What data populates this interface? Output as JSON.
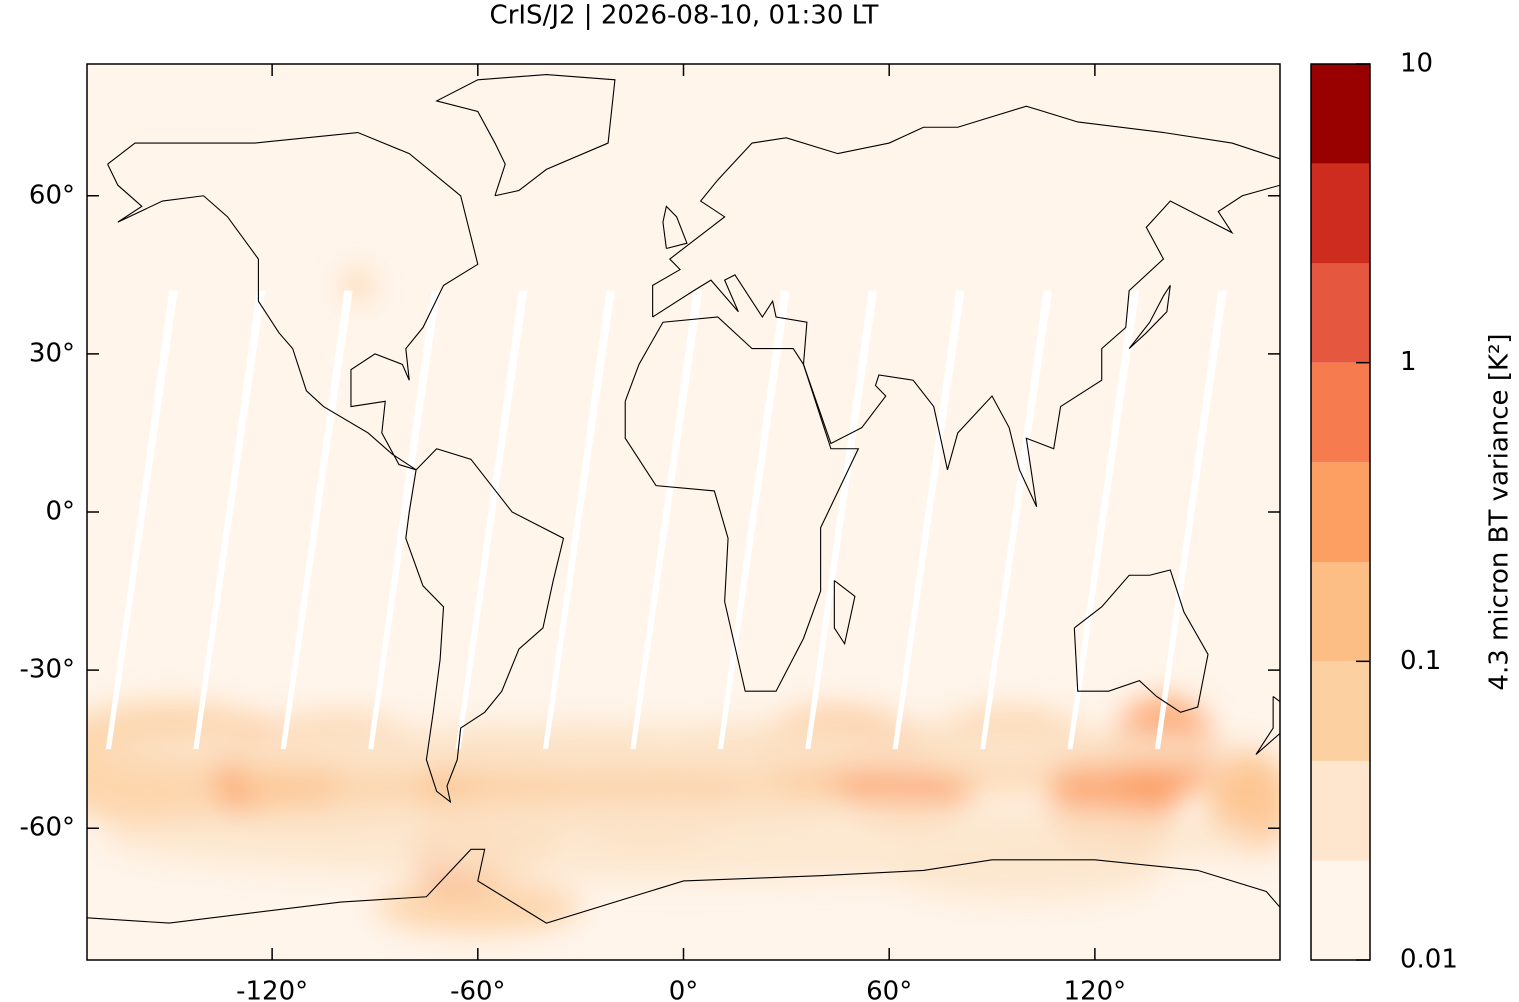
{
  "chart_data": {
    "type": "map",
    "title": "CrIS/J2 | 2026-08-10, 01:30 LT",
    "xlim": [
      -174,
      174
    ],
    "ylim": [
      -85,
      85
    ],
    "xticks": [
      {
        "value": -120,
        "label": "-120°"
      },
      {
        "value": -60,
        "label": "-60°"
      },
      {
        "value": 0,
        "label": "0°"
      },
      {
        "value": 60,
        "label": "60°"
      },
      {
        "value": 120,
        "label": "120°"
      }
    ],
    "yticks": [
      {
        "value": -60,
        "label": "-60°"
      },
      {
        "value": -30,
        "label": "-30°"
      },
      {
        "value": 0,
        "label": "0°"
      },
      {
        "value": 30,
        "label": "30°"
      },
      {
        "value": 60,
        "label": "60°"
      }
    ],
    "colorbar": {
      "label": "4.3 micron BT variance [K²]",
      "log": true,
      "lim": [
        0.01,
        10
      ],
      "ticks": [
        0.01,
        0.1,
        1,
        10
      ],
      "levels": [
        0.01,
        0.0215,
        0.0464,
        0.1,
        0.215,
        0.464,
        1,
        2.15,
        4.64,
        10
      ],
      "colors": [
        "#fff5eb",
        "#fde6cd",
        "#fdd0a2",
        "#fdbe85",
        "#fd9e62",
        "#f67c4f",
        "#e6573f",
        "#cd2c1e",
        "#990000"
      ]
    }
  }
}
